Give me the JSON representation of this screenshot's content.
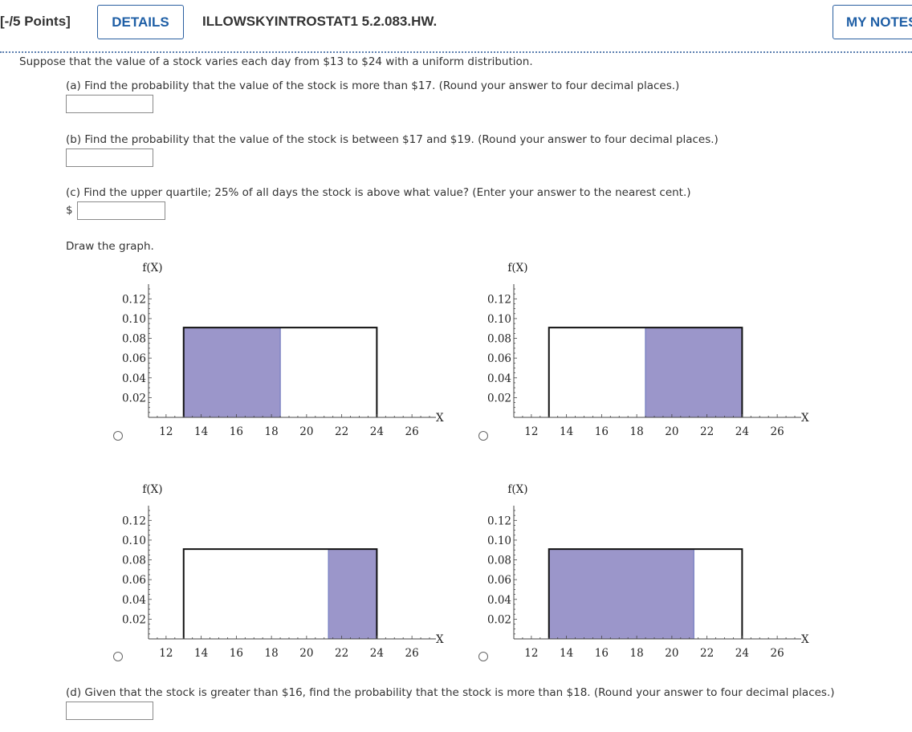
{
  "header": {
    "points": "[-/5 Points]",
    "details_label": "DETAILS",
    "problem_id": "ILLOWSKYINTROSTAT1 5.2.083.HW.",
    "notes_label": "MY NOTES"
  },
  "question": {
    "intro": "Suppose that the value of a stock varies each day from $13 to $24 with a uniform distribution.",
    "part_a": "(a) Find the probability that the value of the stock is more than $17. (Round your answer to four decimal places.)",
    "part_b": "(b) Find the probability that the value of the stock is between $17 and $19. (Round your answer to four decimal places.)",
    "part_c": "(c) Find the upper quartile; 25% of all days the stock is above what value? (Enter your answer to the nearest cent.)",
    "currency": "$",
    "draw_label": "Draw the graph.",
    "part_d": "(d) Given that the stock is greater than $16, find the probability that the stock is more than $18. (Round your answer to four decimal places.)",
    "answers": {
      "a": "",
      "b": "",
      "c": "",
      "d": ""
    }
  },
  "graph_labels": {
    "y": "f(X)",
    "x": "X"
  },
  "chart_data": [
    {
      "type": "area",
      "ylabel": "f(X)",
      "xlabel": "X",
      "xlim": [
        11,
        27
      ],
      "ylim": [
        0,
        0.13
      ],
      "x_ticks": [
        12,
        14,
        16,
        18,
        20,
        22,
        24,
        26
      ],
      "y_ticks": [
        0.02,
        0.04,
        0.06,
        0.08,
        0.1,
        0.12
      ],
      "density": {
        "from": 13,
        "to": 24,
        "height": 0.0909
      },
      "shaded": [
        13,
        18.5
      ],
      "shade_color": "#9b96ca"
    },
    {
      "type": "area",
      "ylabel": "f(X)",
      "xlabel": "X",
      "xlim": [
        11,
        27
      ],
      "ylim": [
        0,
        0.13
      ],
      "x_ticks": [
        12,
        14,
        16,
        18,
        20,
        22,
        24,
        26
      ],
      "y_ticks": [
        0.02,
        0.04,
        0.06,
        0.08,
        0.1,
        0.12
      ],
      "density": {
        "from": 13,
        "to": 24,
        "height": 0.0909
      },
      "shaded": [
        18.5,
        24
      ],
      "shade_color": "#9b96ca"
    },
    {
      "type": "area",
      "ylabel": "f(X)",
      "xlabel": "X",
      "xlim": [
        11,
        27
      ],
      "ylim": [
        0,
        0.13
      ],
      "x_ticks": [
        12,
        14,
        16,
        18,
        20,
        22,
        24,
        26
      ],
      "y_ticks": [
        0.02,
        0.04,
        0.06,
        0.08,
        0.1,
        0.12
      ],
      "density": {
        "from": 13,
        "to": 24,
        "height": 0.0909
      },
      "shaded": [
        21.25,
        24
      ],
      "shade_color": "#9b96ca"
    },
    {
      "type": "area",
      "ylabel": "f(X)",
      "xlabel": "X",
      "xlim": [
        11,
        27
      ],
      "ylim": [
        0,
        0.13
      ],
      "x_ticks": [
        12,
        14,
        16,
        18,
        20,
        22,
        24,
        26
      ],
      "y_ticks": [
        0.02,
        0.04,
        0.06,
        0.08,
        0.1,
        0.12
      ],
      "density": {
        "from": 13,
        "to": 24,
        "height": 0.0909
      },
      "shaded": [
        13,
        21.25
      ],
      "shade_color": "#9b96ca"
    }
  ]
}
